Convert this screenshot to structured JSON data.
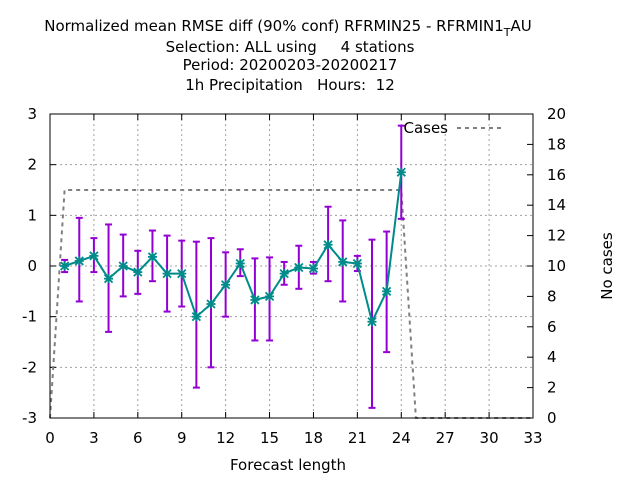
{
  "chart_data": {
    "type": "line",
    "title_lines": [
      "Normalized mean RMSE diff (90% conf) RFRMIN25 - RFRMIN1",
      "Selection: ALL using     4 stations",
      "Period: 20200203-20200217",
      "1h Precipitation   Hours:  12"
    ],
    "title_subscript": "T",
    "title_suffix": "AU",
    "xlabel": "Forecast length",
    "ylabel": "",
    "y2label": "No cases",
    "xlim": [
      0,
      33
    ],
    "ylim": [
      -3,
      3
    ],
    "y2lim": [
      0,
      20
    ],
    "xticks": [
      0,
      3,
      6,
      9,
      12,
      15,
      18,
      21,
      24,
      27,
      30,
      33
    ],
    "yticks": [
      -3,
      -2,
      -1,
      0,
      1,
      2,
      3
    ],
    "y2ticks": [
      0,
      2,
      4,
      6,
      8,
      10,
      12,
      14,
      16,
      18,
      20
    ],
    "grid": true,
    "legend_position": "top-right",
    "series": [
      {
        "name": "",
        "color": "#008b8b",
        "error_color": "#9400d3",
        "x": [
          1,
          2,
          3,
          4,
          5,
          6,
          7,
          8,
          9,
          10,
          11,
          12,
          13,
          14,
          15,
          16,
          17,
          18,
          19,
          20,
          21,
          22,
          23,
          24
        ],
        "y": [
          0.0,
          0.1,
          0.2,
          -0.25,
          0.0,
          -0.12,
          0.18,
          -0.15,
          -0.15,
          -1.0,
          -0.75,
          -0.37,
          0.05,
          -0.67,
          -0.6,
          -0.15,
          -0.03,
          -0.05,
          0.42,
          0.08,
          0.05,
          -1.1,
          -0.5,
          1.85
        ],
        "ylow": [
          -0.12,
          -0.7,
          -0.12,
          -1.3,
          -0.6,
          -0.55,
          -0.3,
          -0.9,
          -0.8,
          -2.4,
          -2.0,
          -1.0,
          -0.2,
          -1.47,
          -1.47,
          -0.37,
          -0.45,
          -0.15,
          -0.3,
          -0.7,
          -0.1,
          -2.8,
          -1.7,
          0.93
        ],
        "yhigh": [
          0.12,
          0.95,
          0.55,
          0.82,
          0.62,
          0.3,
          0.7,
          0.6,
          0.5,
          0.48,
          0.55,
          0.27,
          0.33,
          0.15,
          0.17,
          0.08,
          0.4,
          0.08,
          1.17,
          0.9,
          0.2,
          0.52,
          0.68,
          2.77
        ]
      },
      {
        "name": "Cases",
        "color": "#808080",
        "axis": "y2",
        "x": [
          0,
          1,
          2,
          3,
          4,
          5,
          6,
          7,
          8,
          9,
          10,
          11,
          12,
          13,
          14,
          15,
          16,
          17,
          18,
          19,
          20,
          21,
          22,
          23,
          24,
          25,
          26,
          27,
          28,
          29,
          30,
          31,
          32,
          33
        ],
        "y": [
          0,
          15,
          15,
          15,
          15,
          15,
          15,
          15,
          15,
          15,
          15,
          15,
          15,
          15,
          15,
          15,
          15,
          15,
          15,
          15,
          15,
          15,
          15,
          15,
          15,
          0,
          0,
          0,
          0,
          0,
          0,
          0,
          0,
          0
        ]
      }
    ]
  }
}
